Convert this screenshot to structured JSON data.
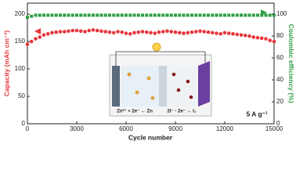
{
  "chart_data": {
    "type": "scatter",
    "xlabel": "Cycle number",
    "ylabel": "Capacity (mAh cm⁻³)",
    "y2label": "Coulombic efficiency (%)",
    "annotation": "5 A g⁻¹",
    "inset_labels": [
      "Zn²⁺ + 2e⁻ ↔ Zn",
      "2I⁻ - 2e⁻ ↔ I₂"
    ],
    "x": [
      0,
      250,
      500,
      750,
      1000,
      1250,
      1500,
      1750,
      2000,
      2250,
      2500,
      2750,
      3000,
      3250,
      3500,
      3750,
      4000,
      4250,
      4500,
      4750,
      5000,
      5250,
      5500,
      5750,
      6000,
      6250,
      6500,
      6750,
      7000,
      7250,
      7500,
      7750,
      8000,
      8250,
      8500,
      8750,
      9000,
      9250,
      9500,
      9750,
      10000,
      10250,
      10500,
      10750,
      11000,
      11250,
      11500,
      11750,
      12000,
      12250,
      12500,
      12750,
      13000,
      13250,
      13500,
      13750,
      14000,
      14250,
      14500,
      14750,
      15000
    ],
    "series": [
      {
        "color": "#e8373c",
        "marker": "circle",
        "values": [
          145,
          150,
          155,
          158,
          162,
          164,
          166,
          167,
          168,
          168,
          169,
          170,
          170,
          169,
          168,
          170,
          171,
          170,
          169,
          168,
          167,
          166,
          168,
          167,
          165,
          164,
          166,
          167,
          168,
          167,
          166,
          165,
          167,
          168,
          169,
          168,
          167,
          166,
          165,
          166,
          167,
          168,
          169,
          168,
          167,
          166,
          165,
          164,
          166,
          165,
          164,
          163,
          162,
          161,
          160,
          158,
          157,
          156,
          155,
          152,
          150
        ]
      },
      {
        "color": "#2f9e44",
        "marker": "square",
        "axis": "y2",
        "values": [
          97,
          98,
          99,
          99,
          99,
          99,
          99,
          99,
          99,
          99,
          99,
          99,
          99,
          99,
          99,
          99,
          99,
          99,
          99,
          99,
          99,
          99,
          99,
          99,
          99,
          99,
          99,
          99,
          99,
          99,
          99,
          99,
          99,
          99,
          99,
          99,
          99,
          99,
          99,
          99,
          99,
          99,
          99,
          99,
          99,
          99,
          99,
          99,
          99,
          99,
          99,
          99,
          99,
          99,
          99,
          99,
          99,
          99,
          99,
          99,
          99
        ]
      }
    ],
    "xlim": [
      0,
      15000
    ],
    "xticks": [
      0,
      3000,
      6000,
      9000,
      12000,
      15000
    ],
    "ylim": [
      0,
      220
    ],
    "yticks": [
      0,
      50,
      100,
      150,
      200
    ],
    "y2lim": [
      0,
      110
    ],
    "y2ticks": [
      0,
      20,
      40,
      60,
      80,
      100
    ],
    "ylabel_color": "#e8373c",
    "y2label_color": "#2f9e44"
  }
}
